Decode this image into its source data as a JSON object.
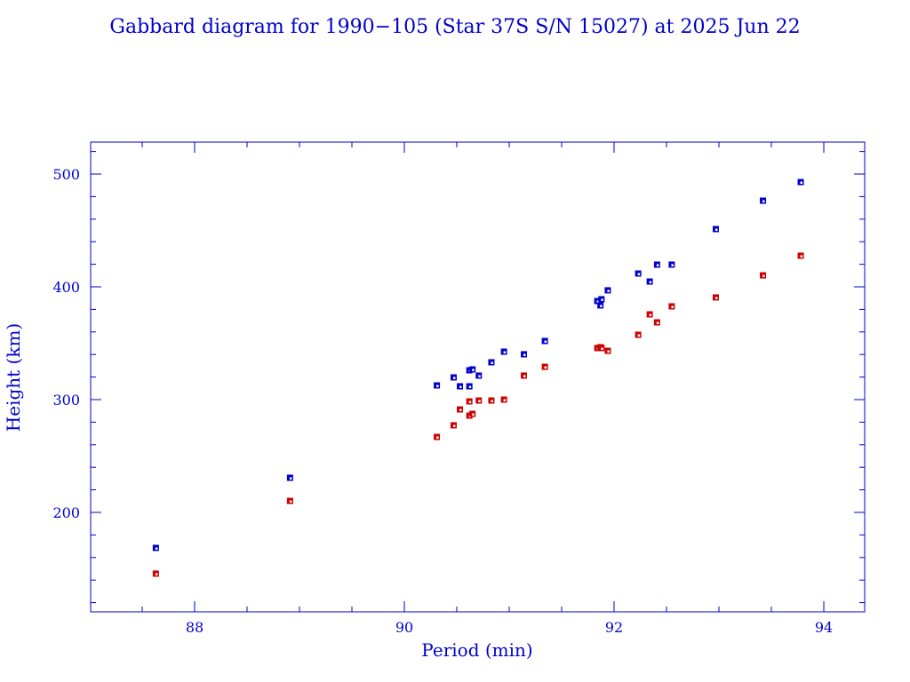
{
  "chart_data": {
    "type": "scatter",
    "title": "Gabbard diagram for 1990−105 (Star 37S S/N 15027) at 2025 Jun 22",
    "xlabel": "Period (min)",
    "ylabel": "Height (km)",
    "xlim": [
      87.0,
      94.4
    ],
    "ylim": [
      112,
      528
    ],
    "xticks": [
      "88",
      "90",
      "92",
      "94"
    ],
    "yticks": [
      "200",
      "300",
      "400",
      "500"
    ],
    "grid": false,
    "colors": {
      "axis": "#0000cc",
      "apogee": "#0000cc",
      "perigee": "#cc0000"
    },
    "x": [
      87.63,
      88.91,
      90.31,
      90.47,
      90.53,
      90.62,
      90.62,
      90.65,
      90.71,
      90.83,
      90.95,
      91.14,
      91.34,
      91.84,
      91.87,
      91.88,
      91.94,
      92.23,
      92.34,
      92.41,
      92.55,
      92.97,
      93.42,
      93.78
    ],
    "series": [
      {
        "values": [
          168.5,
          230.7,
          312.6,
          319.7,
          311.8,
          311.8,
          326.0,
          326.8,
          321.3,
          333.1,
          342.5,
          340.2,
          352.0,
          387.4,
          383.5,
          389.0,
          396.9,
          411.8,
          404.7,
          419.7,
          419.7,
          451.2,
          476.4,
          492.9
        ],
        "color": "#0000cc"
      },
      {
        "values": [
          145.7,
          210.2,
          266.9,
          277.2,
          291.3,
          298.4,
          285.8,
          287.4,
          299.2,
          299.2,
          300.0,
          321.3,
          329.1,
          345.7,
          346.5,
          345.7,
          343.3,
          357.5,
          375.6,
          368.5,
          382.7,
          390.6,
          410.2,
          427.6
        ],
        "color": "#cc0000"
      }
    ]
  }
}
